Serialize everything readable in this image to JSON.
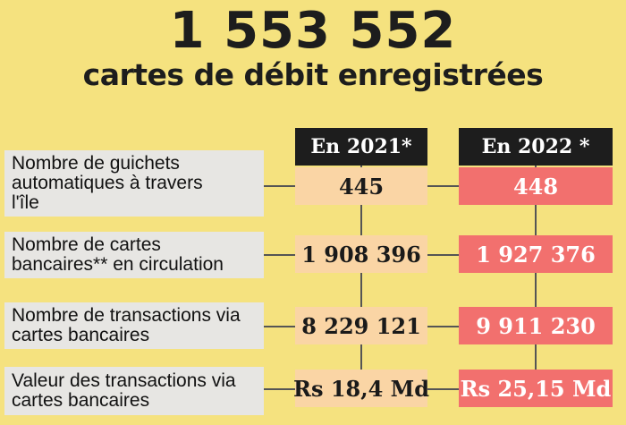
{
  "headline": {
    "number": "1 553 552",
    "subtitle": "cartes de débit enregistrées"
  },
  "columns": [
    "En 2021*",
    "En 2022 *"
  ],
  "rows": [
    {
      "label": "Nombre de guichets automatiques à travers l'île",
      "v2021": "445",
      "v2022": "448"
    },
    {
      "label": "Nombre de cartes bancaires** en circulation",
      "v2021": "1 908 396",
      "v2022": "1 927 376"
    },
    {
      "label": "Nombre de transactions via cartes bancaires",
      "v2021": "8 229 121",
      "v2022": "9 911 230"
    },
    {
      "label": "Valeur des transactions via cartes bancaires",
      "v2021": "Rs 18,4 Md",
      "v2022": "Rs 25,15 Md"
    }
  ],
  "colors": {
    "background": "#F5E27F",
    "header": "#1D1D1D",
    "col2021": "#FAD5A5",
    "col2022": "#F2706E",
    "label_bg": "#E7E6E3"
  }
}
